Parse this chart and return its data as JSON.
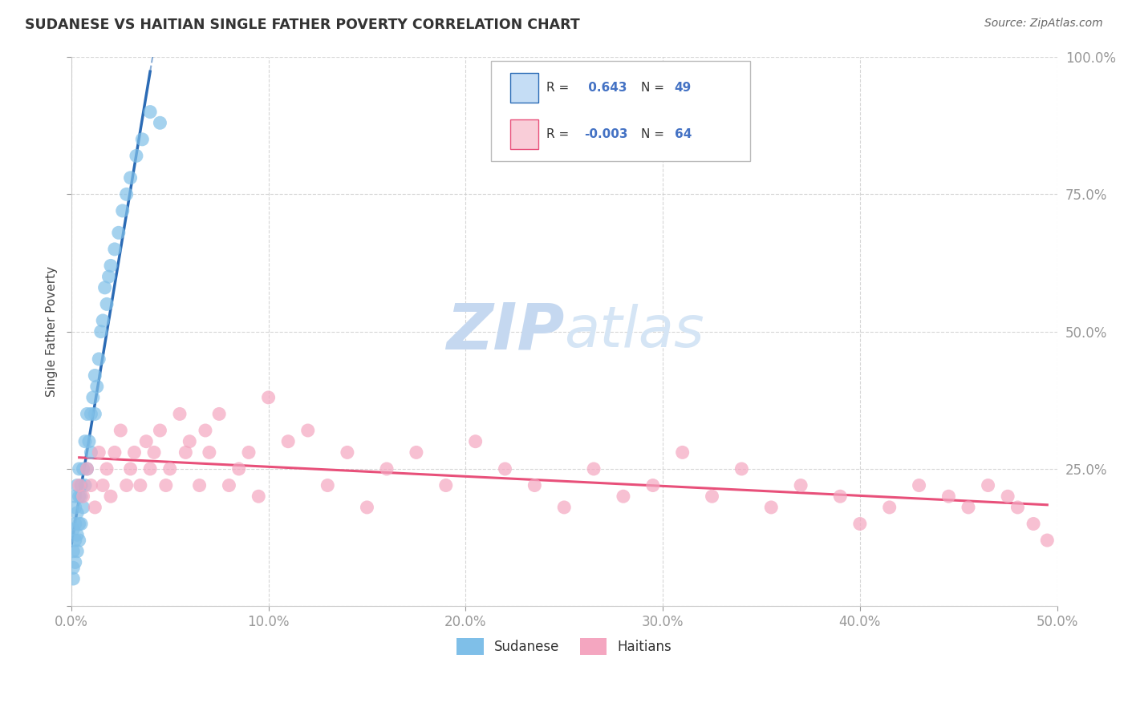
{
  "title": "SUDANESE VS HAITIAN SINGLE FATHER POVERTY CORRELATION CHART",
  "source": "Source: ZipAtlas.com",
  "ylabel": "Single Father Poverty",
  "xmin": 0.0,
  "xmax": 0.5,
  "ymin": 0.0,
  "ymax": 1.0,
  "sudanese_R": 0.643,
  "sudanese_N": 49,
  "haitian_R": -0.003,
  "haitian_N": 64,
  "blue_color": "#7fbfe8",
  "pink_color": "#f4a6c0",
  "blue_line_color": "#2b6bb5",
  "pink_line_color": "#e8507a",
  "legend_box_blue": "#c5ddf5",
  "legend_box_pink": "#f9cdd8",
  "watermark_color_zip": "#c8dff5",
  "watermark_color_atlas": "#d8e8f5",
  "sudanese_x": [
    0.001,
    0.001,
    0.001,
    0.001,
    0.002,
    0.002,
    0.002,
    0.002,
    0.002,
    0.003,
    0.003,
    0.003,
    0.003,
    0.004,
    0.004,
    0.004,
    0.004,
    0.005,
    0.005,
    0.005,
    0.006,
    0.006,
    0.007,
    0.007,
    0.008,
    0.008,
    0.009,
    0.01,
    0.01,
    0.011,
    0.012,
    0.012,
    0.013,
    0.014,
    0.015,
    0.016,
    0.017,
    0.018,
    0.019,
    0.02,
    0.022,
    0.024,
    0.026,
    0.028,
    0.03,
    0.033,
    0.036,
    0.04,
    0.045
  ],
  "sudanese_y": [
    0.05,
    0.07,
    0.1,
    0.14,
    0.08,
    0.12,
    0.15,
    0.18,
    0.2,
    0.1,
    0.13,
    0.17,
    0.22,
    0.12,
    0.15,
    0.2,
    0.25,
    0.15,
    0.2,
    0.22,
    0.18,
    0.25,
    0.22,
    0.3,
    0.25,
    0.35,
    0.3,
    0.28,
    0.35,
    0.38,
    0.35,
    0.42,
    0.4,
    0.45,
    0.5,
    0.52,
    0.58,
    0.55,
    0.6,
    0.62,
    0.65,
    0.68,
    0.72,
    0.75,
    0.78,
    0.82,
    0.85,
    0.9,
    0.88
  ],
  "haitian_x": [
    0.004,
    0.006,
    0.008,
    0.01,
    0.012,
    0.014,
    0.016,
    0.018,
    0.02,
    0.022,
    0.025,
    0.028,
    0.03,
    0.032,
    0.035,
    0.038,
    0.04,
    0.042,
    0.045,
    0.048,
    0.05,
    0.055,
    0.058,
    0.06,
    0.065,
    0.068,
    0.07,
    0.075,
    0.08,
    0.085,
    0.09,
    0.095,
    0.1,
    0.11,
    0.12,
    0.13,
    0.14,
    0.15,
    0.16,
    0.175,
    0.19,
    0.205,
    0.22,
    0.235,
    0.25,
    0.265,
    0.28,
    0.295,
    0.31,
    0.325,
    0.34,
    0.355,
    0.37,
    0.39,
    0.4,
    0.415,
    0.43,
    0.445,
    0.455,
    0.465,
    0.475,
    0.48,
    0.488,
    0.495
  ],
  "haitian_y": [
    0.22,
    0.2,
    0.25,
    0.22,
    0.18,
    0.28,
    0.22,
    0.25,
    0.2,
    0.28,
    0.32,
    0.22,
    0.25,
    0.28,
    0.22,
    0.3,
    0.25,
    0.28,
    0.32,
    0.22,
    0.25,
    0.35,
    0.28,
    0.3,
    0.22,
    0.32,
    0.28,
    0.35,
    0.22,
    0.25,
    0.28,
    0.2,
    0.38,
    0.3,
    0.32,
    0.22,
    0.28,
    0.18,
    0.25,
    0.28,
    0.22,
    0.3,
    0.25,
    0.22,
    0.18,
    0.25,
    0.2,
    0.22,
    0.28,
    0.2,
    0.25,
    0.18,
    0.22,
    0.2,
    0.15,
    0.18,
    0.22,
    0.2,
    0.18,
    0.22,
    0.2,
    0.18,
    0.15,
    0.12
  ],
  "xticks": [
    0.0,
    0.1,
    0.2,
    0.3,
    0.4,
    0.5
  ],
  "xticklabels": [
    "0.0%",
    "10.0%",
    "20.0%",
    "30.0%",
    "40.0%",
    "50.0%"
  ],
  "yticks": [
    0.0,
    0.25,
    0.5,
    0.75,
    1.0
  ],
  "yticklabels": [
    "",
    "25.0%",
    "50.0%",
    "75.0%",
    "100.0%"
  ]
}
